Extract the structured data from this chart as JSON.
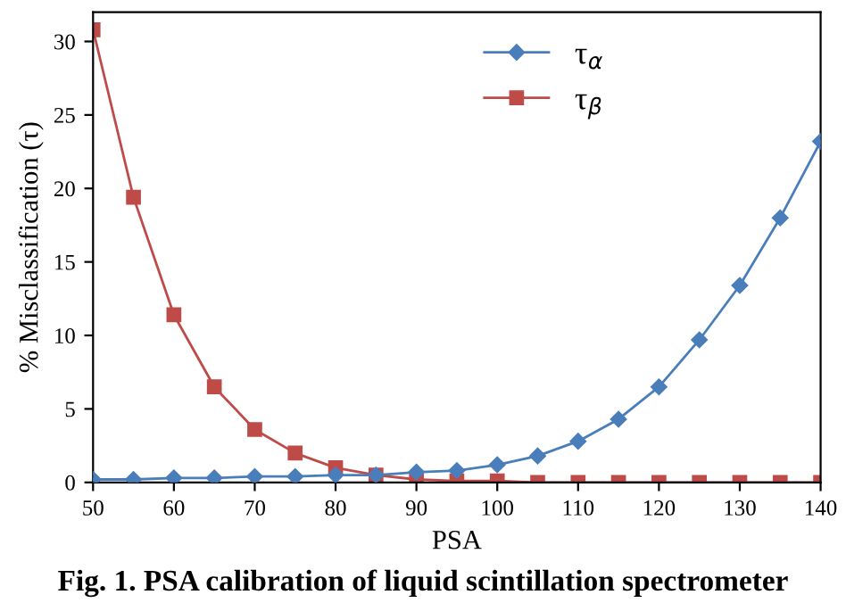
{
  "chart_data": {
    "type": "line",
    "xlabel": "PSA",
    "ylabel": "% Misclassification (τ)",
    "x": [
      50,
      55,
      60,
      65,
      70,
      75,
      80,
      85,
      90,
      95,
      100,
      105,
      110,
      115,
      120,
      125,
      130,
      135,
      140
    ],
    "series": [
      {
        "name": "τ$_{α}$",
        "color": "#4a7ebb",
        "marker": "diamond",
        "values": [
          0.2,
          0.2,
          0.3,
          0.3,
          0.4,
          0.4,
          0.5,
          0.5,
          0.7,
          0.8,
          1.2,
          1.8,
          2.8,
          4.3,
          6.5,
          9.7,
          13.4,
          18.0,
          23.2
        ]
      },
      {
        "name": "τ$_{β}$",
        "color": "#be4b48",
        "marker": "square",
        "values": [
          30.8,
          19.4,
          11.4,
          6.5,
          3.6,
          2.0,
          1.0,
          0.5,
          0.2,
          0.1,
          0.1,
          0,
          0,
          0,
          0,
          0,
          0,
          0,
          0
        ]
      }
    ],
    "xlim": [
      50,
      140
    ],
    "xticks": [
      50,
      60,
      70,
      80,
      90,
      100,
      110,
      120,
      130,
      140
    ],
    "ylim": [
      0,
      32
    ],
    "yticks": [
      0,
      5,
      10,
      15,
      20,
      25,
      30
    ],
    "grid": false,
    "legend": "top",
    "line_style": "solid",
    "annotations": [
      "Fig. 1. PSA calibration of liquid scintillation spectrometer"
    ]
  }
}
